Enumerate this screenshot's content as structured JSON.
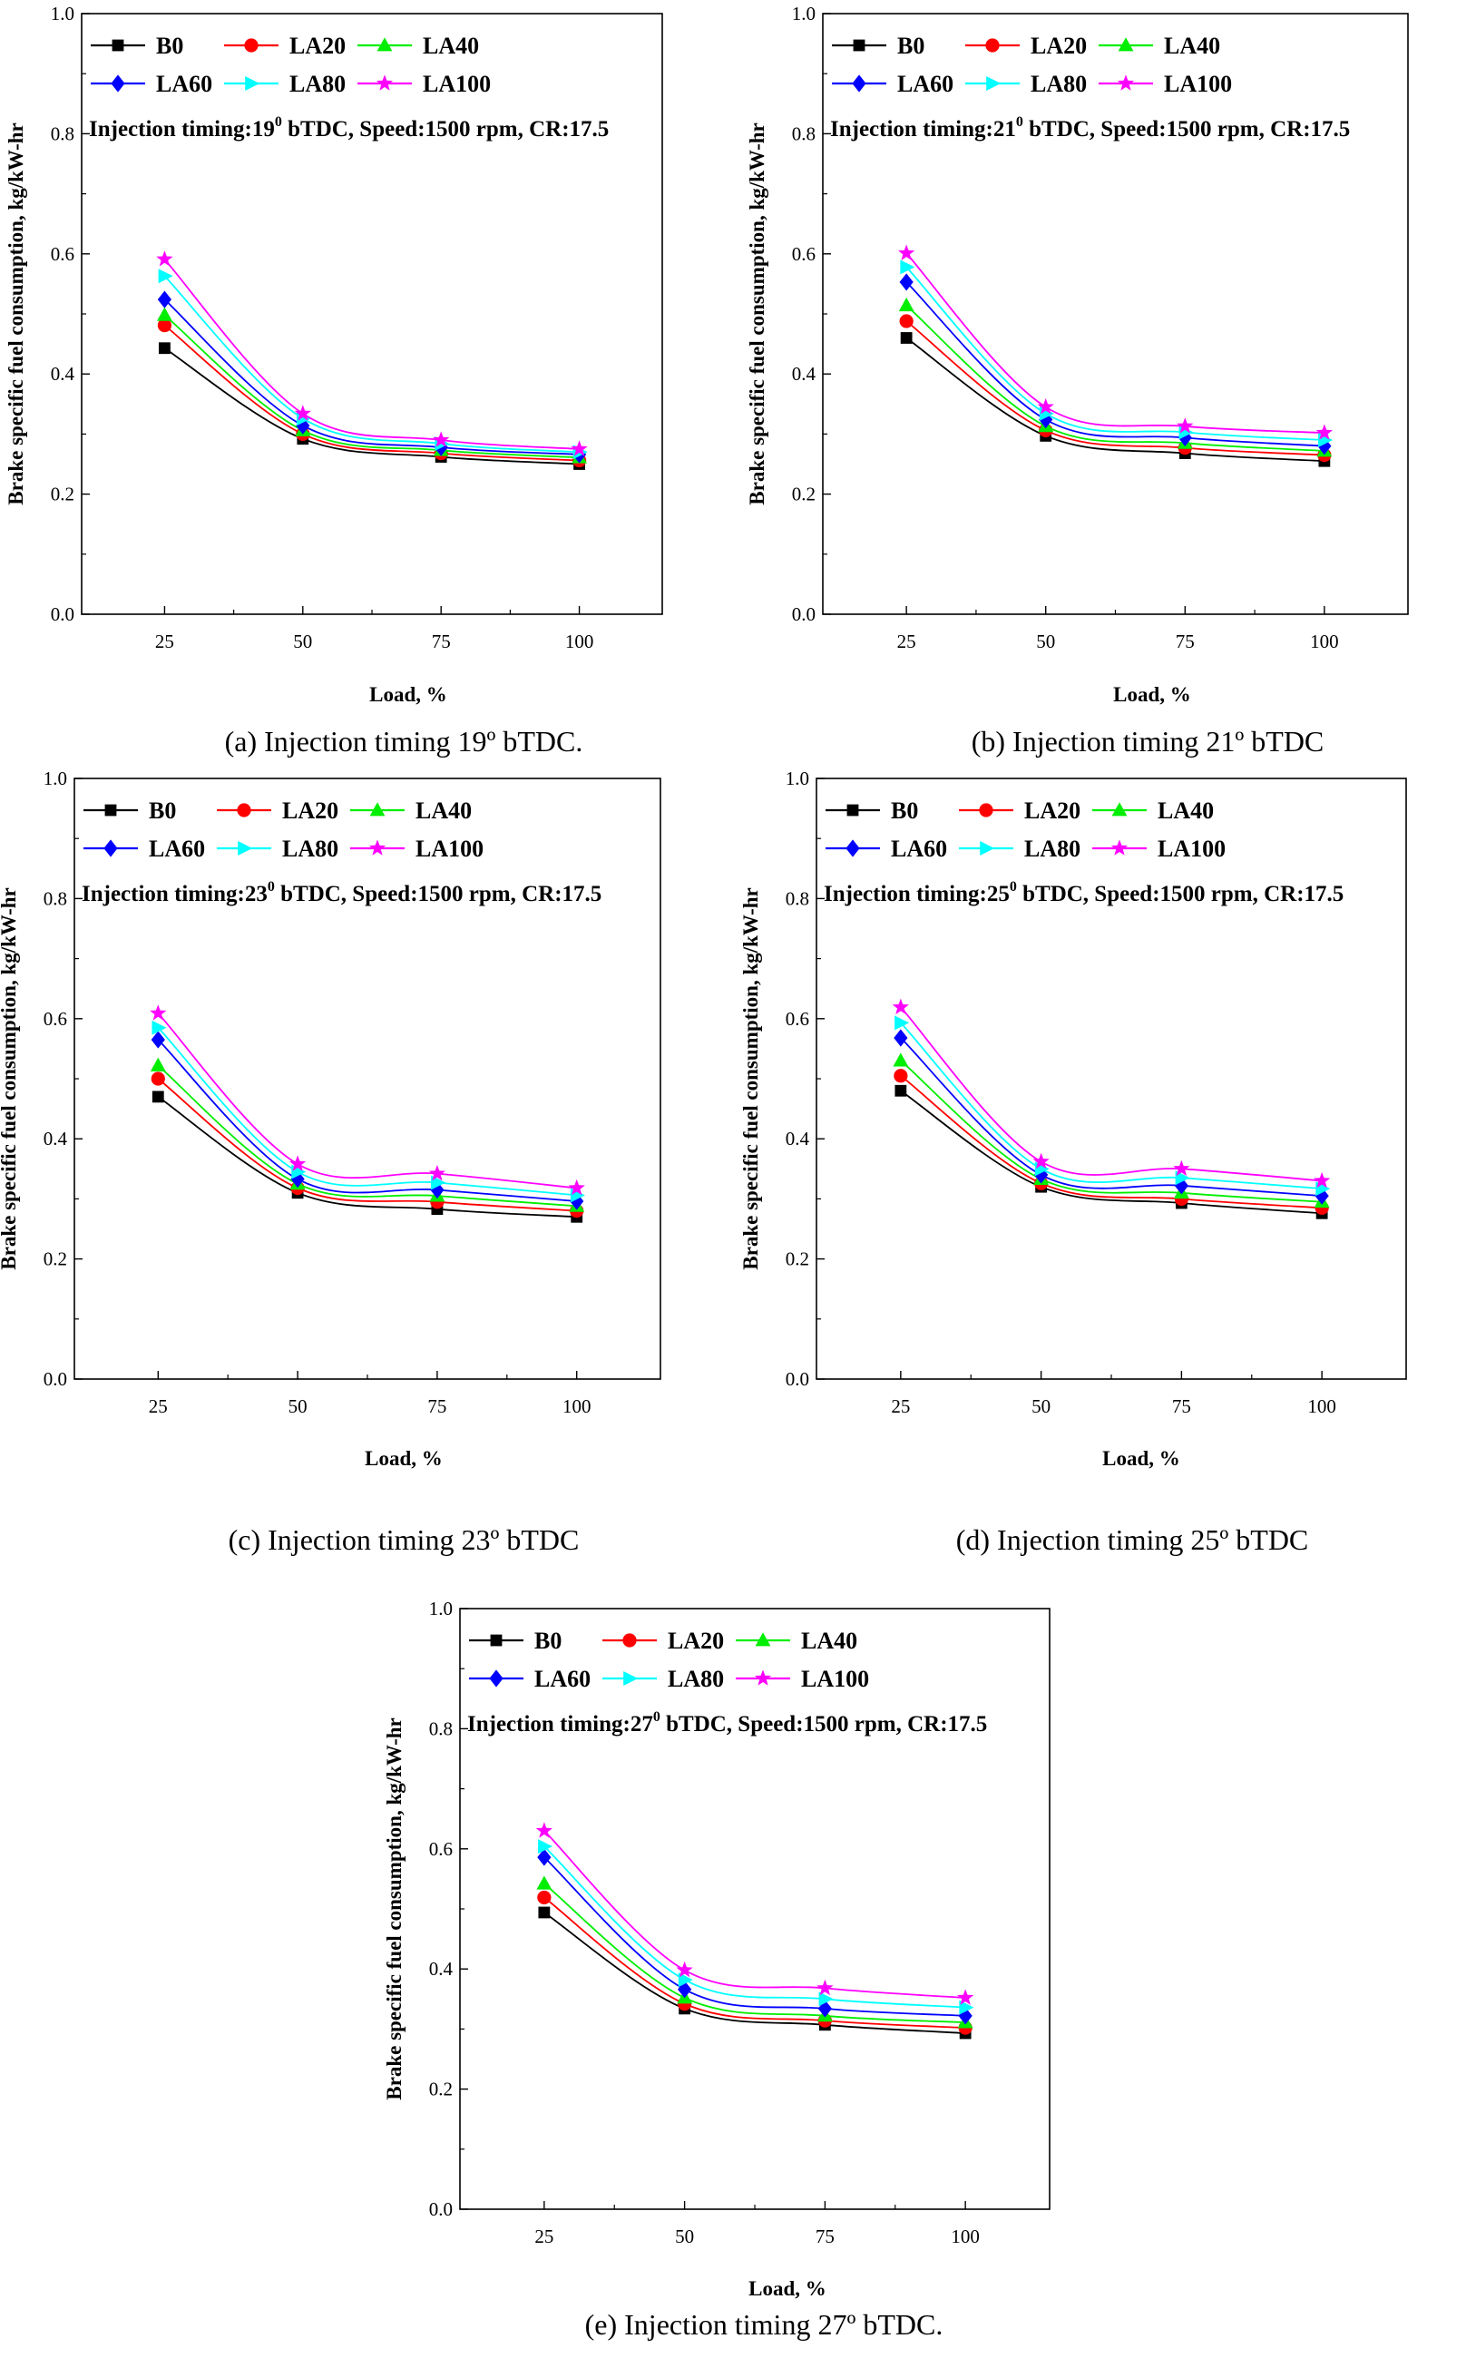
{
  "chart_data": [
    {
      "type": "line",
      "caption": "(a) Injection timing 19º bTDC.",
      "annotation": {
        "pre": "Injection timing:19",
        "sup": "0",
        "post": " bTDC, Speed:1500 rpm, CR:17.5"
      },
      "xlabel": "Load, %",
      "ylabel": "Brake specific fuel consumption, kg/kW-hr",
      "x": [
        25,
        50,
        75,
        100
      ],
      "xticks": [
        "25",
        "50",
        "75",
        "100"
      ],
      "xlim": [
        10,
        115
      ],
      "ylim": [
        0,
        1
      ],
      "yticks": [
        "0.0",
        "0.2",
        "0.4",
        "0.6",
        "0.8",
        "1.0"
      ],
      "series": [
        {
          "name": "B0",
          "values": [
            0.443,
            0.292,
            0.262,
            0.25
          ]
        },
        {
          "name": "LA20",
          "values": [
            0.481,
            0.3,
            0.268,
            0.256
          ]
        },
        {
          "name": "LA40",
          "values": [
            0.498,
            0.306,
            0.273,
            0.261
          ]
        },
        {
          "name": "LA60",
          "values": [
            0.524,
            0.314,
            0.278,
            0.266
          ]
        },
        {
          "name": "LA80",
          "values": [
            0.563,
            0.326,
            0.284,
            0.27
          ]
        },
        {
          "name": "LA100",
          "values": [
            0.591,
            0.334,
            0.29,
            0.275
          ]
        }
      ]
    },
    {
      "type": "line",
      "caption": "(b) Injection timing 21º bTDC",
      "annotation": {
        "pre": "Injection timing:21",
        "sup": "0",
        "post": " bTDC, Speed:1500 rpm, CR:17.5"
      },
      "xlabel": "Load, %",
      "ylabel": "Brake specific fuel consumption, kg/kW-hr",
      "x": [
        25,
        50,
        75,
        100
      ],
      "xticks": [
        "25",
        "50",
        "75",
        "100"
      ],
      "xlim": [
        10,
        115
      ],
      "ylim": [
        0,
        1
      ],
      "yticks": [
        "0.0",
        "0.2",
        "0.4",
        "0.6",
        "0.8",
        "1.0"
      ],
      "series": [
        {
          "name": "B0",
          "values": [
            0.46,
            0.297,
            0.268,
            0.255
          ]
        },
        {
          "name": "LA20",
          "values": [
            0.488,
            0.306,
            0.277,
            0.265
          ]
        },
        {
          "name": "LA40",
          "values": [
            0.514,
            0.313,
            0.285,
            0.272
          ]
        },
        {
          "name": "LA60",
          "values": [
            0.553,
            0.324,
            0.294,
            0.28
          ]
        },
        {
          "name": "LA80",
          "values": [
            0.578,
            0.334,
            0.303,
            0.29
          ]
        },
        {
          "name": "LA100",
          "values": [
            0.601,
            0.345,
            0.313,
            0.302
          ]
        }
      ]
    },
    {
      "type": "line",
      "caption": "(c) Injection timing 23º bTDC",
      "annotation": {
        "pre": "Injection timing:23",
        "sup": "0",
        "post": " bTDC, Speed:1500 rpm, CR:17.5"
      },
      "xlabel": "Load, %",
      "ylabel": "Brake specific fuel consumption, kg/kW-hr",
      "x": [
        25,
        50,
        75,
        100
      ],
      "xticks": [
        "25",
        "50",
        "75",
        "100"
      ],
      "xlim": [
        10,
        115
      ],
      "ylim": [
        0,
        1
      ],
      "yticks": [
        "0.0",
        "0.2",
        "0.4",
        "0.6",
        "0.8",
        "1.0"
      ],
      "series": [
        {
          "name": "B0",
          "values": [
            0.47,
            0.31,
            0.283,
            0.27
          ]
        },
        {
          "name": "LA20",
          "values": [
            0.5,
            0.318,
            0.295,
            0.28
          ]
        },
        {
          "name": "LA40",
          "values": [
            0.522,
            0.325,
            0.305,
            0.288
          ]
        },
        {
          "name": "LA60",
          "values": [
            0.565,
            0.333,
            0.315,
            0.296
          ]
        },
        {
          "name": "LA80",
          "values": [
            0.585,
            0.345,
            0.327,
            0.306
          ]
        },
        {
          "name": "LA100",
          "values": [
            0.609,
            0.358,
            0.342,
            0.318
          ]
        }
      ]
    },
    {
      "type": "line",
      "caption": "(d) Injection timing 25º bTDC",
      "annotation": {
        "pre": "Injection timing:25",
        "sup": "0",
        "post": " bTDC, Speed:1500 rpm, CR:17.5"
      },
      "xlabel": "Load, %",
      "ylabel": "Brake specific fuel consumption, kg/kW-hr",
      "x": [
        25,
        50,
        75,
        100
      ],
      "xticks": [
        "25",
        "50",
        "75",
        "100"
      ],
      "xlim": [
        10,
        115
      ],
      "ylim": [
        0,
        1
      ],
      "yticks": [
        "0.0",
        "0.2",
        "0.4",
        "0.6",
        "0.8",
        "1.0"
      ],
      "series": [
        {
          "name": "B0",
          "values": [
            0.48,
            0.32,
            0.293,
            0.276
          ]
        },
        {
          "name": "LA20",
          "values": [
            0.505,
            0.326,
            0.3,
            0.285
          ]
        },
        {
          "name": "LA40",
          "values": [
            0.53,
            0.333,
            0.31,
            0.295
          ]
        },
        {
          "name": "LA60",
          "values": [
            0.568,
            0.34,
            0.322,
            0.305
          ]
        },
        {
          "name": "LA80",
          "values": [
            0.593,
            0.35,
            0.335,
            0.317
          ]
        },
        {
          "name": "LA100",
          "values": [
            0.619,
            0.362,
            0.35,
            0.33
          ]
        }
      ]
    },
    {
      "type": "line",
      "caption": "(e) Injection timing 27º bTDC.",
      "annotation": {
        "pre": "Injection timing:27",
        "sup": "0",
        "post": " bTDC, Speed:1500 rpm, CR:17.5"
      },
      "xlabel": "Load, %",
      "ylabel": "Brake specific fuel consumption, kg/kW-hr",
      "x": [
        25,
        50,
        75,
        100
      ],
      "xticks": [
        "25",
        "50",
        "75",
        "100"
      ],
      "xlim": [
        10,
        115
      ],
      "ylim": [
        0,
        1
      ],
      "yticks": [
        "0.0",
        "0.2",
        "0.4",
        "0.6",
        "0.8",
        "1.0"
      ],
      "series": [
        {
          "name": "B0",
          "values": [
            0.494,
            0.334,
            0.307,
            0.293
          ]
        },
        {
          "name": "LA20",
          "values": [
            0.519,
            0.342,
            0.314,
            0.302
          ]
        },
        {
          "name": "LA40",
          "values": [
            0.542,
            0.352,
            0.322,
            0.311
          ]
        },
        {
          "name": "LA60",
          "values": [
            0.586,
            0.366,
            0.334,
            0.322
          ]
        },
        {
          "name": "LA80",
          "values": [
            0.604,
            0.382,
            0.35,
            0.336
          ]
        },
        {
          "name": "LA100",
          "values": [
            0.63,
            0.398,
            0.368,
            0.352
          ]
        }
      ]
    }
  ],
  "series_style": [
    {
      "name": "B0",
      "color": "#000000",
      "marker": "square"
    },
    {
      "name": "LA20",
      "color": "#ff0000",
      "marker": "circle"
    },
    {
      "name": "LA40",
      "color": "#00ee00",
      "marker": "triangle-up"
    },
    {
      "name": "LA60",
      "color": "#0000ff",
      "marker": "diamond"
    },
    {
      "name": "LA80",
      "color": "#00ffff",
      "marker": "triangle-right"
    },
    {
      "name": "LA100",
      "color": "#ff00ff",
      "marker": "star"
    }
  ]
}
